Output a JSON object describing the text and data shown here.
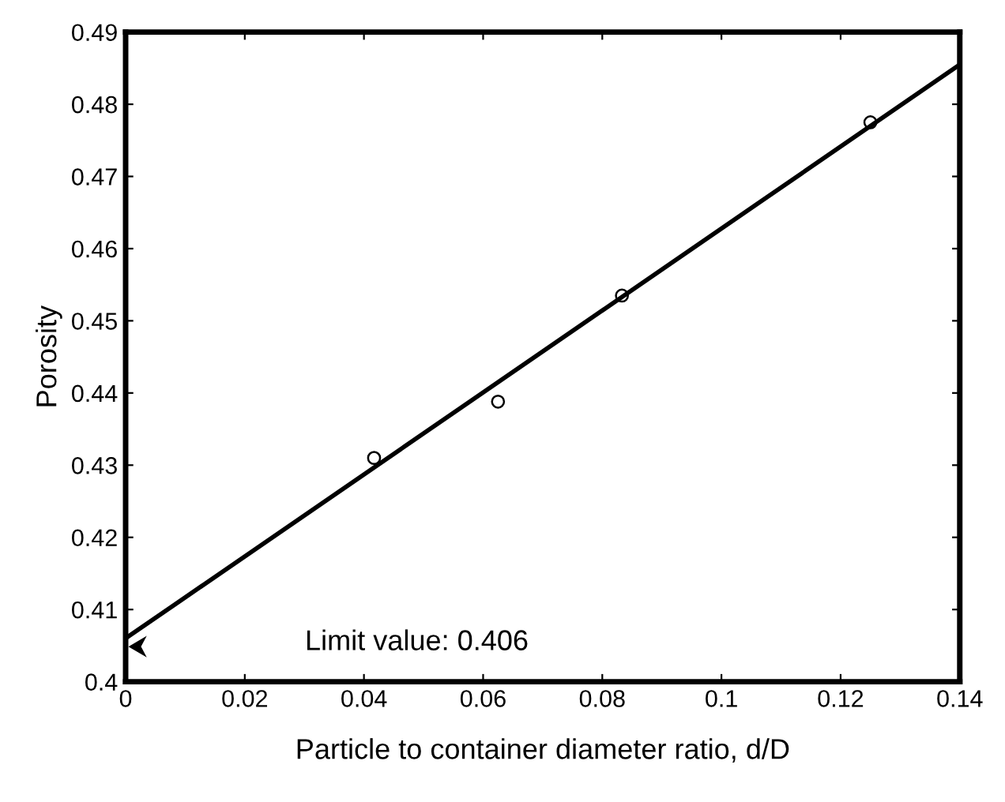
{
  "chart_data": {
    "type": "scatter",
    "xlabel": "Particle to container diameter ratio, d/D",
    "ylabel": "Porosity",
    "x": [
      0.0417,
      0.0625,
      0.0833,
      0.125
    ],
    "series": [
      {
        "color": "#000000",
        "marker": "circle",
        "values": [
          0.431,
          0.4388,
          0.4535,
          0.4775
        ]
      },
      {
        "type": "line",
        "color": "#000000",
        "marker": "none",
        "x": [
          0,
          0.14
        ],
        "values": [
          0.406,
          0.4855
        ]
      }
    ],
    "annotations": [
      "Limit value: 0.406"
    ],
    "xlim": [
      0,
      0.14
    ],
    "ylim": [
      0.4,
      0.49
    ],
    "xticks": [
      0,
      0.02,
      0.04,
      0.06,
      0.08,
      {
        "value": 0.1,
        "label": "0.1"
      },
      0.12,
      0.14
    ],
    "yticks": [
      {
        "value": 0.4,
        "label": "0.4"
      },
      0.41,
      0.42,
      0.43,
      0.44,
      0.45,
      0.46,
      0.47,
      0.48,
      0.49
    ],
    "grid": false
  }
}
